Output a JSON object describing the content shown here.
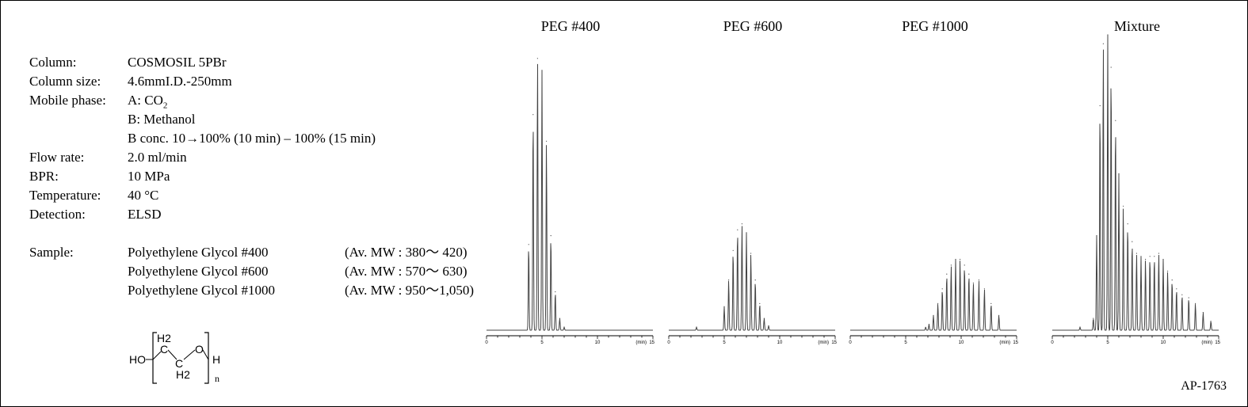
{
  "conditions": [
    {
      "label": "Column:",
      "value": "COSMOSIL  5PBr"
    },
    {
      "label": "Column size:",
      "value": "4.6mmI.D.-250mm"
    },
    {
      "label": "Mobile phase:",
      "value": "A: CO",
      "sub": "2"
    },
    {
      "label": "",
      "value": "B: Methanol"
    },
    {
      "label": "",
      "value": "B conc. 10→100% (10 min) – 100% (15 min)"
    },
    {
      "label": "Flow rate:",
      "value": "2.0 ml/min"
    },
    {
      "label": "BPR:",
      "value": "10 MPa"
    },
    {
      "label": "Temperature:",
      "value": "40 °C"
    },
    {
      "label": "Detection:",
      "value": "ELSD"
    }
  ],
  "sample_label": "Sample:",
  "samples": [
    {
      "name": "Polyethylene Glycol #400",
      "mw": "(Av. MW : 380～  420)"
    },
    {
      "name": "Polyethylene Glycol #600",
      "mw": "(Av. MW : 570～  630)"
    },
    {
      "name": "Polyethylene Glycol #1000",
      "mw": "(Av. MW : 950～1,050)"
    }
  ],
  "structure": {
    "left": "HO",
    "top_group": "H2",
    "bottom_group": "H2",
    "c1": "C",
    "c2": "C",
    "o": "O",
    "right": "H",
    "n": "n"
  },
  "document_code": "AP-1763",
  "chart_data": [
    {
      "type": "line",
      "title": "PEG #400",
      "xlabel": "(min)",
      "xlim": [
        0,
        15
      ],
      "ticks": [
        0,
        5,
        10,
        15
      ],
      "peaks": [
        [
          3.8,
          0.29
        ],
        [
          4.2,
          0.73
        ],
        [
          4.6,
          0.92
        ],
        [
          5.0,
          0.88
        ],
        [
          5.4,
          0.64
        ],
        [
          5.8,
          0.32
        ],
        [
          6.2,
          0.13
        ],
        [
          6.6,
          0.04
        ],
        [
          7.0,
          0.01
        ]
      ]
    },
    {
      "type": "line",
      "title": "PEG #600",
      "xlabel": "(min)",
      "xlim": [
        0,
        15
      ],
      "ticks": [
        0,
        5,
        10,
        15
      ],
      "peaks": [
        [
          2.5,
          0.01
        ],
        [
          5.0,
          0.08
        ],
        [
          5.4,
          0.17
        ],
        [
          5.8,
          0.27
        ],
        [
          6.2,
          0.34
        ],
        [
          6.6,
          0.36
        ],
        [
          7.0,
          0.33
        ],
        [
          7.4,
          0.26
        ],
        [
          7.8,
          0.17
        ],
        [
          8.2,
          0.09
        ],
        [
          8.6,
          0.04
        ],
        [
          9.0,
          0.015
        ]
      ]
    },
    {
      "type": "line",
      "title": "PEG #1000",
      "xlabel": "(min)",
      "xlim": [
        0,
        15
      ],
      "ticks": [
        0,
        5,
        10,
        15
      ],
      "peaks": [
        [
          6.8,
          0.01
        ],
        [
          7.1,
          0.02
        ],
        [
          7.5,
          0.05
        ],
        [
          7.9,
          0.09
        ],
        [
          8.3,
          0.14
        ],
        [
          8.7,
          0.19
        ],
        [
          9.1,
          0.22
        ],
        [
          9.5,
          0.24
        ],
        [
          9.9,
          0.24
        ],
        [
          10.3,
          0.22
        ],
        [
          10.7,
          0.19
        ],
        [
          11.1,
          0.16
        ],
        [
          11.6,
          0.17
        ],
        [
          12.1,
          0.14
        ],
        [
          12.7,
          0.09
        ],
        [
          13.4,
          0.05
        ]
      ]
    },
    {
      "type": "line",
      "title": "Mixture",
      "xlabel": "(min)",
      "xlim": [
        0,
        15
      ],
      "ticks": [
        0,
        5,
        10,
        15
      ],
      "peaks": [
        [
          2.5,
          0.01
        ],
        [
          3.7,
          0.04
        ],
        [
          4.0,
          0.32
        ],
        [
          4.3,
          0.76
        ],
        [
          4.6,
          0.97
        ],
        [
          5.0,
          1.0
        ],
        [
          5.3,
          0.89
        ],
        [
          5.7,
          0.71
        ],
        [
          6.0,
          0.53
        ],
        [
          6.4,
          0.42
        ],
        [
          6.8,
          0.36
        ],
        [
          7.2,
          0.3
        ],
        [
          7.6,
          0.26
        ],
        [
          8.0,
          0.25
        ],
        [
          8.4,
          0.24
        ],
        [
          8.8,
          0.25
        ],
        [
          9.2,
          0.25
        ],
        [
          9.6,
          0.26
        ],
        [
          10.0,
          0.24
        ],
        [
          10.4,
          0.2
        ],
        [
          10.8,
          0.17
        ],
        [
          11.2,
          0.14
        ],
        [
          11.7,
          0.12
        ],
        [
          12.3,
          0.11
        ],
        [
          12.9,
          0.09
        ],
        [
          13.6,
          0.06
        ],
        [
          14.3,
          0.03
        ]
      ]
    }
  ]
}
